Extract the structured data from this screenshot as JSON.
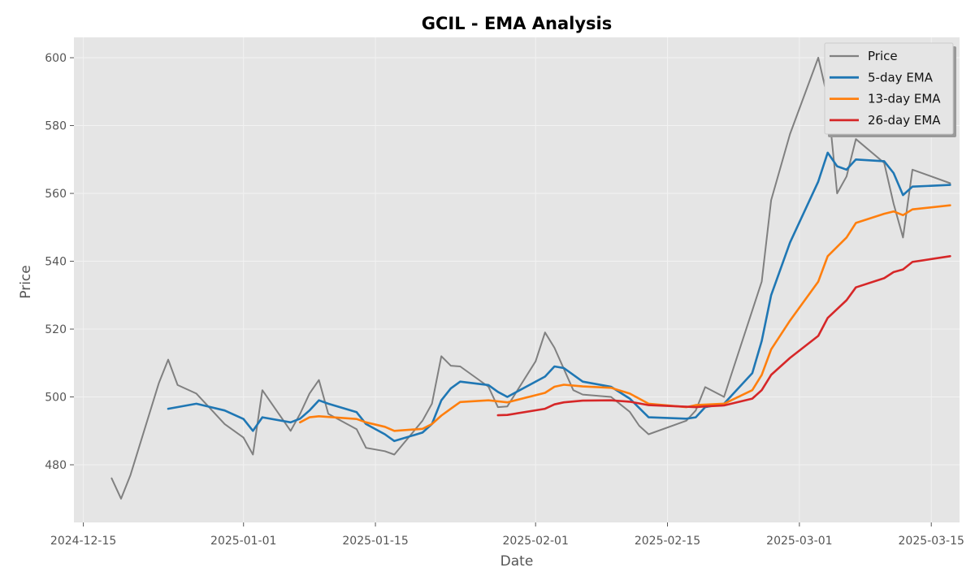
{
  "chart_data": {
    "type": "line",
    "title": "GCIL - EMA Analysis",
    "xlabel": "Date",
    "ylabel": "Price",
    "x_scale": "date",
    "xlim": [
      "2024-12-14",
      "2025-03-18"
    ],
    "ylim": [
      463,
      606
    ],
    "grid": true,
    "legend_position": "top-right",
    "x_ticks": [
      "2024-12-15",
      "2025-01-01",
      "2025-01-15",
      "2025-02-01",
      "2025-02-15",
      "2025-03-01",
      "2025-03-15"
    ],
    "y_ticks": [
      480,
      500,
      520,
      540,
      560,
      580,
      600
    ],
    "colors": {
      "background": "#e5e5e5",
      "grid": "#f2f2f2",
      "axis_text": "#555555"
    },
    "series": [
      {
        "name": "Price",
        "color": "#808080",
        "points": [
          [
            "2024-12-18",
            476
          ],
          [
            "2024-12-19",
            470
          ],
          [
            "2024-12-20",
            477
          ],
          [
            "2024-12-23",
            504
          ],
          [
            "2024-12-24",
            511
          ],
          [
            "2024-12-25",
            503.5
          ],
          [
            "2024-12-27",
            501
          ],
          [
            "2024-12-30",
            492
          ],
          [
            "2025-01-01",
            488
          ],
          [
            "2025-01-02",
            483
          ],
          [
            "2025-01-03",
            502
          ],
          [
            "2025-01-06",
            490
          ],
          [
            "2025-01-07",
            495
          ],
          [
            "2025-01-08",
            501
          ],
          [
            "2025-01-09",
            505
          ],
          [
            "2025-01-10",
            495
          ],
          [
            "2025-01-13",
            490.5
          ],
          [
            "2025-01-14",
            485
          ],
          [
            "2025-01-16",
            484
          ],
          [
            "2025-01-17",
            483
          ],
          [
            "2025-01-20",
            493
          ],
          [
            "2025-01-21",
            498
          ],
          [
            "2025-01-22",
            512
          ],
          [
            "2025-01-23",
            509.2
          ],
          [
            "2025-01-24",
            509
          ],
          [
            "2025-01-27",
            503
          ],
          [
            "2025-01-28",
            497
          ],
          [
            "2025-01-29",
            497.2
          ],
          [
            "2025-02-01",
            510.5
          ],
          [
            "2025-02-02",
            519
          ],
          [
            "2025-02-03",
            514.5
          ],
          [
            "2025-02-05",
            502
          ],
          [
            "2025-02-06",
            500.7
          ],
          [
            "2025-02-09",
            500
          ],
          [
            "2025-02-11",
            495.6
          ],
          [
            "2025-02-12",
            491.5
          ],
          [
            "2025-02-13",
            489
          ],
          [
            "2025-02-17",
            493
          ],
          [
            "2025-02-18",
            496
          ],
          [
            "2025-02-19",
            502.9
          ],
          [
            "2025-02-21",
            500
          ],
          [
            "2025-02-25",
            534
          ],
          [
            "2025-02-26",
            558
          ],
          [
            "2025-02-28",
            577.5
          ],
          [
            "2025-03-03",
            600
          ],
          [
            "2025-03-04",
            588
          ],
          [
            "2025-03-05",
            560
          ],
          [
            "2025-03-06",
            565
          ],
          [
            "2025-03-07",
            576
          ],
          [
            "2025-03-10",
            569
          ],
          [
            "2025-03-11",
            557
          ],
          [
            "2025-03-12",
            547
          ],
          [
            "2025-03-13",
            567
          ],
          [
            "2025-03-17",
            563
          ]
        ]
      },
      {
        "name": "5-day EMA",
        "color": "#1f77b4",
        "points": [
          [
            "2024-12-24",
            496.5
          ],
          [
            "2024-12-27",
            498
          ],
          [
            "2024-12-30",
            496
          ],
          [
            "2025-01-01",
            493.5
          ],
          [
            "2025-01-02",
            490
          ],
          [
            "2025-01-03",
            494
          ],
          [
            "2025-01-06",
            492.5
          ],
          [
            "2025-01-07",
            493.6
          ],
          [
            "2025-01-08",
            496
          ],
          [
            "2025-01-09",
            499
          ],
          [
            "2025-01-10",
            498
          ],
          [
            "2025-01-13",
            495.5
          ],
          [
            "2025-01-14",
            492
          ],
          [
            "2025-01-16",
            489
          ],
          [
            "2025-01-17",
            487
          ],
          [
            "2025-01-20",
            489.5
          ],
          [
            "2025-01-21",
            492
          ],
          [
            "2025-01-22",
            499
          ],
          [
            "2025-01-23",
            502.5
          ],
          [
            "2025-01-24",
            504.5
          ],
          [
            "2025-01-27",
            503.5
          ],
          [
            "2025-01-28",
            501.5
          ],
          [
            "2025-01-29",
            500
          ],
          [
            "2025-02-02",
            506
          ],
          [
            "2025-02-03",
            509
          ],
          [
            "2025-02-04",
            508.5
          ],
          [
            "2025-02-06",
            504.5
          ],
          [
            "2025-02-09",
            503
          ],
          [
            "2025-02-11",
            499.5
          ],
          [
            "2025-02-13",
            494
          ],
          [
            "2025-02-17",
            493.6
          ],
          [
            "2025-02-18",
            494
          ],
          [
            "2025-02-19",
            497
          ],
          [
            "2025-02-21",
            498
          ],
          [
            "2025-02-24",
            507
          ],
          [
            "2025-02-25",
            516.5
          ],
          [
            "2025-02-26",
            530
          ],
          [
            "2025-02-28",
            545.5
          ],
          [
            "2025-03-03",
            563.5
          ],
          [
            "2025-03-04",
            572
          ],
          [
            "2025-03-05",
            568
          ],
          [
            "2025-03-06",
            567
          ],
          [
            "2025-03-07",
            570
          ],
          [
            "2025-03-10",
            569.5
          ],
          [
            "2025-03-11",
            566
          ],
          [
            "2025-03-12",
            559.5
          ],
          [
            "2025-03-13",
            562
          ],
          [
            "2025-03-17",
            562.5
          ]
        ]
      },
      {
        "name": "13-day EMA",
        "color": "#ff7f0e",
        "points": [
          [
            "2025-01-07",
            492.5
          ],
          [
            "2025-01-08",
            494
          ],
          [
            "2025-01-09",
            494.3
          ],
          [
            "2025-01-13",
            493.5
          ],
          [
            "2025-01-14",
            492.5
          ],
          [
            "2025-01-16",
            491.2
          ],
          [
            "2025-01-17",
            490
          ],
          [
            "2025-01-20",
            490.6
          ],
          [
            "2025-01-21",
            492
          ],
          [
            "2025-01-22",
            494.5
          ],
          [
            "2025-01-23",
            496.5
          ],
          [
            "2025-01-24",
            498.5
          ],
          [
            "2025-01-27",
            499
          ],
          [
            "2025-01-29",
            498.4
          ],
          [
            "2025-02-02",
            501.2
          ],
          [
            "2025-02-03",
            503
          ],
          [
            "2025-02-04",
            503.6
          ],
          [
            "2025-02-06",
            503.1
          ],
          [
            "2025-02-09",
            502.7
          ],
          [
            "2025-02-11",
            501
          ],
          [
            "2025-02-13",
            498
          ],
          [
            "2025-02-17",
            497
          ],
          [
            "2025-02-18",
            497.6
          ],
          [
            "2025-02-21",
            498
          ],
          [
            "2025-02-24",
            502
          ],
          [
            "2025-02-25",
            506.5
          ],
          [
            "2025-02-26",
            514
          ],
          [
            "2025-02-28",
            522.5
          ],
          [
            "2025-03-03",
            534
          ],
          [
            "2025-03-04",
            541.5
          ],
          [
            "2025-03-06",
            547
          ],
          [
            "2025-03-07",
            551.3
          ],
          [
            "2025-03-10",
            554
          ],
          [
            "2025-03-11",
            554.7
          ],
          [
            "2025-03-12",
            553.6
          ],
          [
            "2025-03-13",
            555.3
          ],
          [
            "2025-03-17",
            556.5
          ]
        ]
      },
      {
        "name": "26-day EMA",
        "color": "#d62728",
        "points": [
          [
            "2025-01-28",
            494.6
          ],
          [
            "2025-01-29",
            494.7
          ],
          [
            "2025-02-02",
            496.5
          ],
          [
            "2025-02-03",
            497.8
          ],
          [
            "2025-02-04",
            498.4
          ],
          [
            "2025-02-06",
            498.9
          ],
          [
            "2025-02-09",
            499
          ],
          [
            "2025-02-11",
            498.6
          ],
          [
            "2025-02-13",
            497.6
          ],
          [
            "2025-02-18",
            497
          ],
          [
            "2025-02-19",
            497.2
          ],
          [
            "2025-02-21",
            497.5
          ],
          [
            "2025-02-24",
            499.5
          ],
          [
            "2025-02-25",
            502
          ],
          [
            "2025-02-26",
            506.5
          ],
          [
            "2025-02-28",
            511.5
          ],
          [
            "2025-03-03",
            518
          ],
          [
            "2025-03-04",
            523.3
          ],
          [
            "2025-03-06",
            528.5
          ],
          [
            "2025-03-07",
            532.3
          ],
          [
            "2025-03-10",
            535
          ],
          [
            "2025-03-11",
            536.8
          ],
          [
            "2025-03-12",
            537.6
          ],
          [
            "2025-03-13",
            539.8
          ],
          [
            "2025-03-17",
            541.5
          ]
        ]
      }
    ]
  }
}
